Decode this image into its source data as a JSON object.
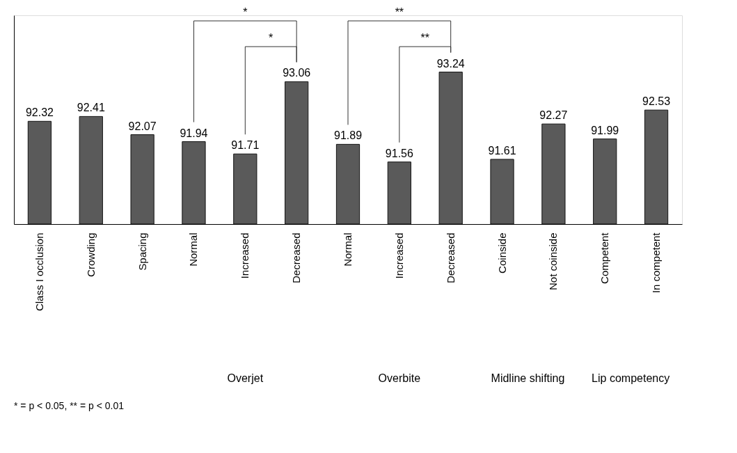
{
  "chart_data": {
    "type": "bar",
    "categories": [
      "Class I occlusion",
      "Crowding",
      "Spacing",
      "Normal",
      "Increased",
      "Decreased",
      "Normal",
      "Increased",
      "Decreased",
      "Coinside",
      "Not coinside",
      "Competent",
      "In competent"
    ],
    "values": [
      92.32,
      92.41,
      92.07,
      91.94,
      91.71,
      93.06,
      91.89,
      91.56,
      93.24,
      91.61,
      92.27,
      91.99,
      92.53
    ],
    "color": "#5a5a5a",
    "ylim": [
      90.4,
      94.3
    ],
    "data_labels": true,
    "grid": false,
    "annotations": [
      "*",
      "*",
      "**",
      "**",
      "Overjet",
      "Overbite",
      "Midline shifting",
      "Lip competency",
      "* = p < 0.05, ** = p < 0.01"
    ]
  }
}
